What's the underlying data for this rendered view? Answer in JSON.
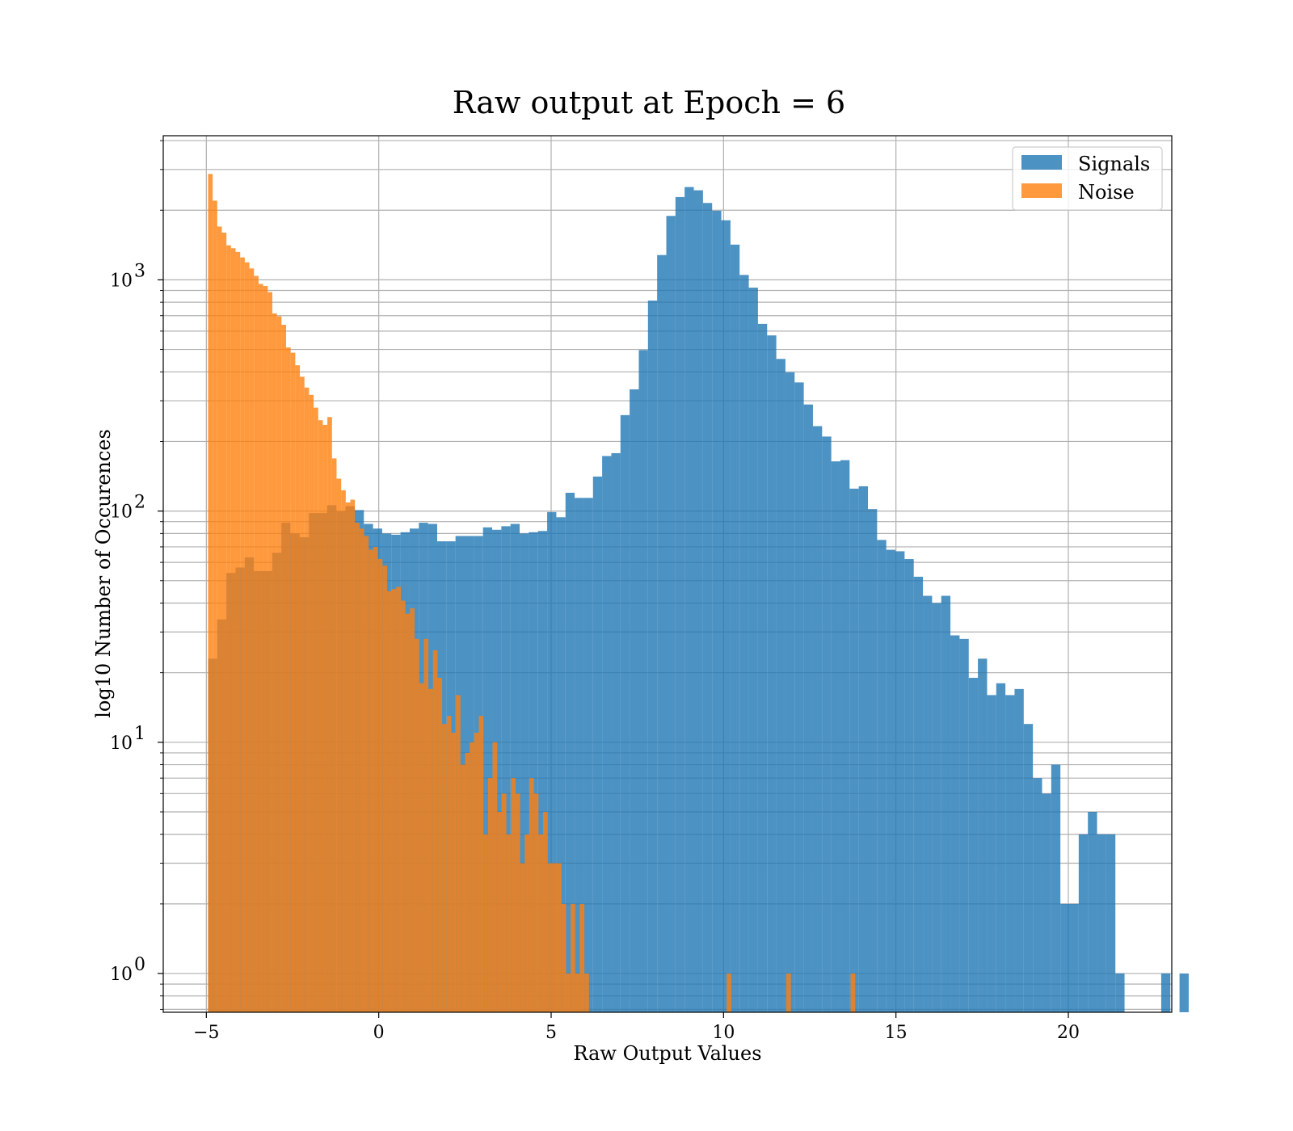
{
  "chart_data": {
    "type": "bar",
    "title": "Raw output at Epoch = 6",
    "xlabel": "Raw Output Values",
    "ylabel": "log10 Number of Occurences",
    "x_scale": "linear",
    "y_scale": "log",
    "xlim": [
      -6.25,
      23
    ],
    "ylim": [
      0.68,
      4200
    ],
    "x_ticks": [
      -5,
      0,
      5,
      10,
      15,
      20
    ],
    "x_tick_labels": [
      "−5",
      "0",
      "5",
      "10",
      "15",
      "20"
    ],
    "y_ticks": [
      1,
      10,
      100,
      1000
    ],
    "y_tick_labels": [
      [
        "10",
        "0"
      ],
      [
        "10",
        "1"
      ],
      [
        "10",
        "2"
      ],
      [
        "10",
        "3"
      ]
    ],
    "grid": true,
    "legend_position": "top-right",
    "series": [
      {
        "name": "Signals",
        "color": "#1f77b4",
        "opacity": 0.8,
        "bin_start": -4.95,
        "bin_width": 0.2658,
        "counts": [
          23,
          34,
          54,
          57,
          63,
          55,
          55,
          66,
          89,
          80,
          77,
          98,
          98,
          106,
          100,
          105,
          101,
          88,
          84,
          80,
          79,
          81,
          84,
          89,
          88,
          74,
          74,
          78,
          78,
          78,
          85,
          83,
          86,
          88,
          80,
          81,
          82,
          99,
          94,
          120,
          114,
          114,
          141,
          173,
          178,
          260,
          336,
          497,
          813,
          1280,
          1890,
          2280,
          2520,
          2440,
          2150,
          1990,
          1810,
          1420,
          1050,
          925,
          645,
          575,
          455,
          398,
          360,
          289,
          233,
          210,
          164,
          166,
          125,
          128,
          102,
          75,
          68,
          67,
          62,
          52,
          43,
          40,
          43,
          29,
          28,
          19,
          23,
          16,
          18,
          16,
          17,
          12,
          7,
          6,
          8,
          2,
          2,
          4,
          5,
          4,
          4,
          1,
          0,
          0,
          0,
          0,
          1,
          0,
          1
        ]
      },
      {
        "name": "Noise",
        "color": "#ff7f0e",
        "opacity": 0.8,
        "bin_start": -4.95,
        "bin_width": 0.1331,
        "counts": [
          2870,
          2200,
          1700,
          1600,
          1410,
          1370,
          1320,
          1250,
          1190,
          1120,
          1040,
          960,
          940,
          885,
          716,
          695,
          639,
          510,
          484,
          427,
          381,
          342,
          318,
          280,
          247,
          236,
          255,
          169,
          138,
          123,
          109,
          112,
          89,
          84,
          78,
          68,
          70,
          62,
          58,
          45,
          46,
          47,
          41,
          36,
          38,
          28,
          18,
          28,
          17,
          25,
          19,
          12,
          13,
          11,
          16,
          8,
          9,
          10,
          11,
          13,
          4,
          7,
          10,
          5,
          6,
          4,
          7,
          6,
          3,
          4,
          7,
          6,
          4,
          5,
          3,
          3,
          3,
          2,
          1,
          2,
          1,
          2,
          1,
          0,
          0,
          0,
          0,
          0,
          0,
          0,
          0,
          0,
          0,
          0,
          0,
          0,
          0,
          0,
          0,
          0,
          0,
          0,
          0,
          0,
          0,
          0,
          0,
          0,
          0,
          0,
          0,
          0,
          0,
          1,
          0,
          0,
          0,
          0,
          0,
          0,
          0,
          0,
          0,
          0,
          0,
          0,
          1,
          0,
          0,
          0,
          0,
          0,
          0,
          0,
          0,
          0,
          0,
          0,
          0,
          0,
          1
        ]
      }
    ]
  }
}
